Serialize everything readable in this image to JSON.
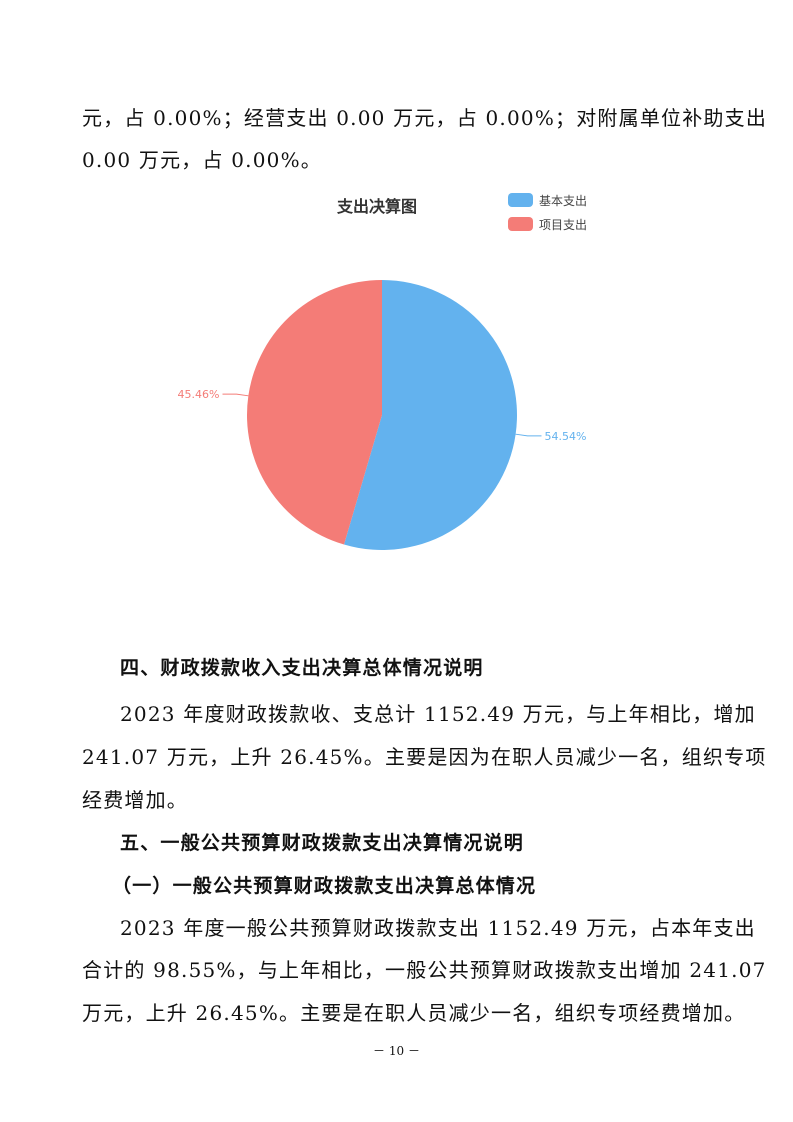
{
  "paragraphs": {
    "p0_l1": "元，占 0.00%；经营支出 0.00 万元，占 0.00%；对附属单位补助支出",
    "p0_l2": "0.00 万元，占 0.00%。",
    "h4": "四、财政拨款收入支出决算总体情况说明",
    "p1_l1": "2023 年度财政拨款收、支总计 1152.49 万元，与上年相比，增加",
    "p1_l2": "241.07 万元，上升 26.45%。主要是因为在职人员减少一名，组织专项",
    "p1_l3": "经费增加。",
    "h5": "五、一般公共预算财政拨款支出决算情况说明",
    "h5_1": "（一）一般公共预算财政拨款支出决算总体情况",
    "p2_l1": "2023 年度一般公共预算财政拨款支出 1152.49 万元，占本年支出",
    "p2_l2": "合计的 98.55%，与上年相比，一般公共预算财政拨款支出增加 241.07",
    "p2_l3": "万元，上升 26.45%。主要是在职人员减少一名，组织专项经费增加。"
  },
  "page_number": "－ 10 －",
  "chart_data": {
    "type": "pie",
    "title": "支出决算图",
    "legend_placement": "top-right",
    "categories": [
      "基本支出",
      "项目支出"
    ],
    "values": [
      54.54,
      45.46
    ],
    "labels": [
      "54.54%",
      "45.46%"
    ],
    "colors": [
      "#63b2ee",
      "#f47c77"
    ]
  }
}
